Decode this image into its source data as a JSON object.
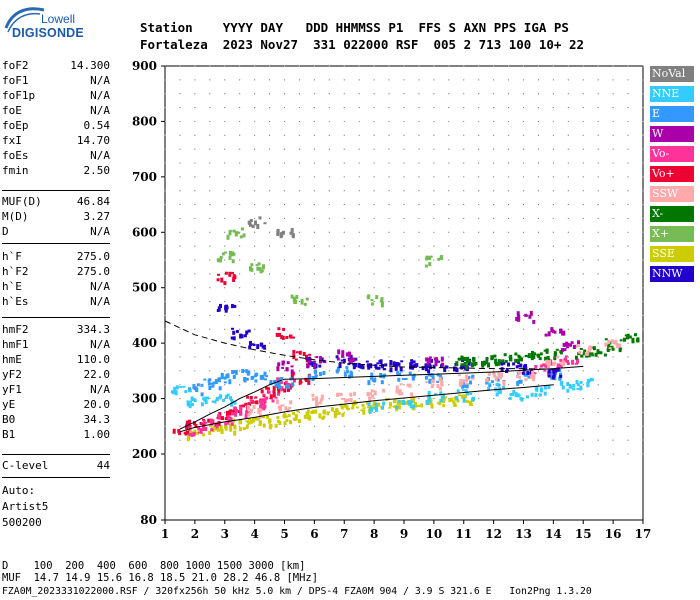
{
  "logo": {
    "top": "Lowell",
    "bottom": "DIGISONDE"
  },
  "header": {
    "line1": "Station    YYYY DAY   DDD HHMMSS P1  FFS S AXN PPS IGA PS",
    "line2": "Fortaleza  2023 Nov27  331 022000 RSF  005 2 713 100 10+ 22"
  },
  "params": {
    "g1": [
      [
        "foF2",
        "14.300"
      ],
      [
        "foF1",
        "N/A"
      ],
      [
        "foF1p",
        "N/A"
      ],
      [
        "foE",
        "N/A"
      ],
      [
        "foEp",
        "0.54"
      ],
      [
        "fxI",
        "14.70"
      ],
      [
        "foEs",
        "N/A"
      ],
      [
        "fmin",
        "2.50"
      ]
    ],
    "g2": [
      [
        "MUF(D)",
        "46.84"
      ],
      [
        "M(D)",
        "3.27"
      ],
      [
        "D",
        "N/A"
      ]
    ],
    "g3": [
      [
        "h`F",
        "275.0"
      ],
      [
        "h`F2",
        "275.0"
      ],
      [
        "h`E",
        "N/A"
      ],
      [
        "h`Es",
        "N/A"
      ]
    ],
    "g4": [
      [
        "hmF2",
        "334.3"
      ],
      [
        "hmF1",
        "N/A"
      ],
      [
        "hmE",
        "110.0"
      ],
      [
        "yF2",
        "22.0"
      ],
      [
        "yF1",
        "N/A"
      ],
      [
        "yE",
        "20.0"
      ],
      [
        "B0",
        "34.3"
      ],
      [
        "B1",
        "1.00"
      ]
    ],
    "g5": [
      [
        "C-level",
        "44"
      ]
    ]
  },
  "auto": {
    "l1": "Auto:",
    "l2": "Artist5",
    "l3": "500200"
  },
  "legend": [
    {
      "label": "NoVal",
      "color": "#808080"
    },
    {
      "label": "NNE",
      "color": "#33ccff"
    },
    {
      "label": "E",
      "color": "#3399ff"
    },
    {
      "label": "W",
      "color": "#aa00aa"
    },
    {
      "label": "Vo-",
      "color": "#ff3399"
    },
    {
      "label": "Vo+",
      "color": "#ee0033"
    },
    {
      "label": "SSW",
      "color": "#ffaaaa"
    },
    {
      "label": "X-",
      "color": "#007700"
    },
    {
      "label": "X+",
      "color": "#77bb55"
    },
    {
      "label": "SSE",
      "color": "#cccc00"
    },
    {
      "label": "NNW",
      "color": "#2200cc"
    }
  ],
  "chart_data": {
    "type": "scatter",
    "xlim": [
      1,
      17
    ],
    "ylim": [
      80,
      900
    ],
    "xticks": [
      "1",
      "2",
      "3",
      "4",
      "5",
      "6",
      "7",
      "8",
      "9",
      "10",
      "11",
      "12",
      "13",
      "14",
      "15",
      "16",
      "17"
    ],
    "yticks": [
      "900",
      "800",
      "700",
      "600",
      "500",
      "400",
      "300",
      "200",
      "80"
    ],
    "series": [
      {
        "name": "SSE",
        "color": "#cccc00",
        "points": [
          [
            2,
            240
          ],
          [
            2.5,
            245
          ],
          [
            3,
            250
          ],
          [
            3.5,
            255
          ],
          [
            4,
            258
          ],
          [
            4.5,
            262
          ],
          [
            5,
            266
          ],
          [
            5.5,
            270
          ],
          [
            6,
            275
          ],
          [
            6.5,
            278
          ],
          [
            7,
            283
          ],
          [
            7.5,
            288
          ],
          [
            8,
            290
          ],
          [
            8.5,
            292
          ],
          [
            9,
            293
          ],
          [
            9.5,
            295
          ],
          [
            10,
            297
          ],
          [
            10.5,
            298
          ],
          [
            11,
            300
          ]
        ]
      },
      {
        "name": "Vo+",
        "color": "#ee0033",
        "points": [
          [
            1.5,
            248
          ],
          [
            2,
            255
          ],
          [
            2.5,
            262
          ],
          [
            3,
            272
          ],
          [
            3.5,
            285
          ],
          [
            4,
            300
          ],
          [
            4.5,
            315
          ],
          [
            5,
            325
          ],
          [
            5.5,
            340
          ],
          [
            3,
            520
          ],
          [
            5,
            420
          ],
          [
            5.5,
            380
          ]
        ]
      },
      {
        "name": "Vo-",
        "color": "#ff3399",
        "points": [
          [
            2,
            245
          ],
          [
            2.5,
            255
          ],
          [
            3,
            265
          ],
          [
            3.5,
            280
          ],
          [
            4,
            292
          ],
          [
            4.5,
            305
          ],
          [
            5,
            330
          ],
          [
            13.5,
            355
          ],
          [
            14,
            362
          ],
          [
            14.5,
            370
          ]
        ]
      },
      {
        "name": "E",
        "color": "#3399ff",
        "points": [
          [
            2,
            320
          ],
          [
            2.5,
            330
          ],
          [
            3,
            340
          ],
          [
            3.5,
            345
          ],
          [
            4,
            340
          ],
          [
            4.5,
            335
          ],
          [
            5,
            330
          ],
          [
            6,
            345
          ],
          [
            7,
            350
          ],
          [
            8,
            340
          ],
          [
            9,
            345
          ],
          [
            10,
            338
          ],
          [
            11,
            335
          ],
          [
            12,
            330
          ],
          [
            13,
            340
          ],
          [
            14,
            345
          ]
        ]
      },
      {
        "name": "NNE",
        "color": "#33ccff",
        "points": [
          [
            1.5,
            315
          ],
          [
            2,
            300
          ],
          [
            2.5,
            295
          ],
          [
            3,
            300
          ],
          [
            8,
            290
          ],
          [
            9,
            295
          ],
          [
            10,
            305
          ],
          [
            11,
            310
          ],
          [
            12,
            320
          ],
          [
            12.8,
            310
          ],
          [
            13.5,
            318
          ],
          [
            14.5,
            325
          ],
          [
            15,
            330
          ]
        ]
      },
      {
        "name": "NNW",
        "color": "#2200cc",
        "points": [
          [
            3,
            470
          ],
          [
            3.5,
            420
          ],
          [
            4,
            400
          ],
          [
            6,
            370
          ],
          [
            7,
            372
          ],
          [
            7.5,
            365
          ],
          [
            8,
            365
          ],
          [
            8.5,
            362
          ],
          [
            9,
            363
          ],
          [
            9.5,
            360
          ],
          [
            10,
            365
          ],
          [
            10.5,
            362
          ],
          [
            11,
            365
          ],
          [
            12.5,
            360
          ],
          [
            13,
            355
          ],
          [
            14,
            350
          ]
        ]
      },
      {
        "name": "X-",
        "color": "#007700",
        "points": [
          [
            11,
            370
          ],
          [
            11.5,
            372
          ],
          [
            12,
            372
          ],
          [
            12.5,
            375
          ],
          [
            13,
            378
          ],
          [
            13.5,
            380
          ],
          [
            14,
            382
          ],
          [
            15,
            385
          ],
          [
            15.5,
            388
          ],
          [
            16,
            400
          ],
          [
            16.5,
            415
          ]
        ]
      },
      {
        "name": "SSW",
        "color": "#ffaaaa",
        "points": [
          [
            4,
            280
          ],
          [
            5,
            290
          ],
          [
            6,
            300
          ],
          [
            7,
            305
          ],
          [
            8,
            310
          ],
          [
            9,
            320
          ],
          [
            10,
            330
          ],
          [
            11,
            335
          ],
          [
            12,
            340
          ],
          [
            13,
            345
          ],
          [
            14,
            370
          ],
          [
            15,
            390
          ],
          [
            16,
            400
          ]
        ]
      },
      {
        "name": "W",
        "color": "#aa00aa",
        "points": [
          [
            5,
            360
          ],
          [
            6,
            370
          ],
          [
            7,
            380
          ],
          [
            10,
            370
          ],
          [
            13,
            450
          ],
          [
            14,
            420
          ],
          [
            14.5,
            400
          ]
        ]
      },
      {
        "name": "X+",
        "color": "#77bb55",
        "points": [
          [
            3,
            560
          ],
          [
            3.3,
            600
          ],
          [
            4,
            540
          ],
          [
            5.5,
            480
          ],
          [
            8,
            480
          ],
          [
            10,
            550
          ]
        ]
      },
      {
        "name": "NoVal",
        "color": "#808080",
        "points": [
          [
            4,
            620
          ],
          [
            5,
            600
          ]
        ]
      }
    ],
    "curves": [
      {
        "name": "dashed",
        "points": [
          [
            1,
            440
          ],
          [
            2,
            415
          ],
          [
            3,
            400
          ],
          [
            4,
            388
          ],
          [
            5,
            378
          ],
          [
            6,
            370
          ],
          [
            7,
            364
          ],
          [
            8,
            360
          ],
          [
            9,
            357
          ],
          [
            10,
            356
          ],
          [
            11,
            355
          ],
          [
            12,
            354
          ],
          [
            13,
            354
          ],
          [
            14,
            353
          ]
        ]
      },
      {
        "name": "solid-upper",
        "points": [
          [
            1.5,
            245
          ],
          [
            2,
            258
          ],
          [
            2.5,
            272
          ],
          [
            3,
            285
          ],
          [
            3.5,
            300
          ],
          [
            4,
            312
          ],
          [
            4.5,
            325
          ],
          [
            5,
            335
          ],
          [
            6,
            336
          ],
          [
            7,
            338
          ],
          [
            8,
            340
          ],
          [
            9,
            342
          ],
          [
            10,
            344
          ],
          [
            11,
            346
          ],
          [
            12,
            348
          ],
          [
            13,
            351
          ],
          [
            14,
            354
          ],
          [
            15,
            358
          ]
        ]
      },
      {
        "name": "solid-lower",
        "points": [
          [
            1.5,
            240
          ],
          [
            2,
            248
          ],
          [
            3,
            258
          ],
          [
            4,
            266
          ],
          [
            5,
            276
          ],
          [
            6,
            284
          ],
          [
            7,
            290
          ],
          [
            8,
            296
          ],
          [
            9,
            301
          ],
          [
            10,
            306
          ],
          [
            11,
            311
          ],
          [
            12,
            316
          ],
          [
            13,
            320
          ],
          [
            14,
            325
          ]
        ]
      }
    ]
  },
  "footer": {
    "line1": "D    100  200  400  600  800 1000 1500 3000 [km]",
    "line2": "MUF  14.7 14.9 15.6 16.8 18.5 21.0 28.2 46.8 [MHz]",
    "line3": "FZA0M_2023331022000.RSF / 320fx256h 50 kHz 5.0 km / DPS-4 FZA0M 904 / 3.9 S 321.6 E   Ion2Png 1.3.20"
  }
}
